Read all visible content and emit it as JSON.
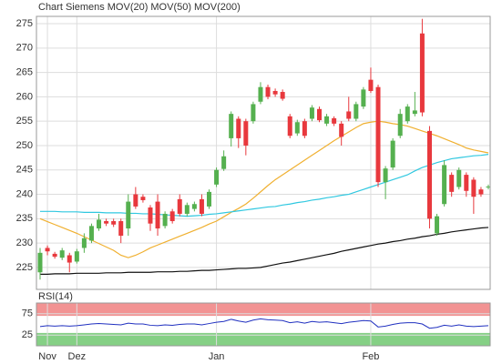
{
  "chart_data": [
    {
      "type": "candlestick",
      "title": "Chart Siemens",
      "title_color": "#e8503a",
      "categories": [
        null,
        "Nov",
        null,
        null,
        null,
        "Dez",
        null,
        null,
        null,
        null,
        null,
        null,
        null,
        null,
        null,
        null,
        null,
        null,
        null,
        null,
        null,
        null,
        null,
        null,
        "Jan",
        null,
        null,
        null,
        null,
        null,
        null,
        null,
        null,
        null,
        null,
        null,
        null,
        null,
        null,
        null,
        null,
        null,
        null,
        null,
        null,
        "Feb",
        null,
        null,
        null,
        null,
        null,
        null,
        null,
        null,
        null,
        null,
        null,
        null,
        null,
        null,
        null,
        null
      ],
      "open": [
        224,
        229,
        227.8,
        227,
        227.5,
        226.2,
        229,
        230.5,
        233,
        234.5,
        234.5,
        234.5,
        233,
        240,
        239.5,
        237.3,
        238.5,
        233.5,
        236.5,
        239,
        236,
        237,
        239,
        237.5,
        242,
        245.2,
        251.5,
        255.5,
        255,
        255,
        259,
        262,
        261.2,
        261,
        256,
        252.5,
        255,
        255.5,
        257.5,
        254.5,
        255.6,
        254.5,
        257,
        255.5,
        258,
        263.5,
        262,
        242.5,
        245.5,
        252,
        255,
        256.5,
        273,
        253,
        232,
        238,
        244,
        241.5,
        244,
        243,
        241,
        241.4
      ],
      "close": [
        228,
        228.3,
        227.2,
        228.5,
        226,
        228.3,
        231,
        233.5,
        234.8,
        234,
        233.8,
        231.5,
        238.5,
        237.5,
        238.8,
        234,
        233,
        236,
        234.5,
        236,
        237.8,
        238,
        236,
        240.5,
        245,
        247.8,
        256.5,
        251.5,
        250,
        258.5,
        262,
        260,
        260.5,
        259.6,
        252,
        254.8,
        252,
        257.8,
        255.2,
        256,
        254.5,
        251.8,
        255.5,
        258.5,
        261.5,
        261.2,
        242.5,
        245.3,
        251,
        256.5,
        258,
        257.2,
        256.8,
        235,
        235.5,
        246,
        240.5,
        245,
        240.7,
        239.5,
        240,
        241.6
      ],
      "high": [
        229,
        229.5,
        228.2,
        229,
        228,
        228.8,
        232,
        234,
        236,
        235,
        235,
        235,
        240,
        241.5,
        240,
        237.8,
        240,
        236.5,
        237,
        240,
        238.3,
        238.5,
        240,
        241,
        245.5,
        249,
        257,
        256,
        255.5,
        259,
        263,
        262.5,
        261.7,
        261.5,
        256.5,
        255.3,
        255.5,
        258.3,
        258,
        256.5,
        256,
        255,
        260,
        259,
        262,
        266,
        262.5,
        245.8,
        251.5,
        257.5,
        258.5,
        261,
        276,
        254,
        236,
        247,
        244.5,
        245.5,
        244.5,
        243.5,
        241.5,
        242
      ],
      "low": [
        222.5,
        227.5,
        226.8,
        226.5,
        224,
        225.8,
        228,
        230,
        232.5,
        233.5,
        233.3,
        230,
        231.5,
        237,
        238.3,
        232.5,
        231.5,
        233,
        234,
        235.5,
        235.5,
        236.5,
        235.5,
        237,
        241.5,
        244.8,
        249.8,
        249.5,
        248,
        254.5,
        258.5,
        259.5,
        260,
        259.2,
        251.5,
        252,
        251.5,
        255,
        254.8,
        254,
        254,
        250,
        255,
        255,
        257.5,
        260.8,
        241.5,
        239,
        245,
        251.5,
        254.5,
        256,
        256,
        233,
        231.5,
        237.5,
        239.5,
        241,
        239.5,
        236,
        239.5,
        241
      ],
      "up_color": "#55b04f",
      "down_color": "#e8383d",
      "series": [
        {
          "name": "MOV(20)",
          "color": "#f0b030",
          "values": [
            235,
            234.4,
            233.8,
            233.2,
            232.6,
            232,
            231.3,
            230.6,
            229.9,
            229.2,
            228.5,
            227.5,
            227,
            227.5,
            228.2,
            229,
            229.6,
            230.2,
            230.8,
            231.4,
            232,
            232.6,
            233.2,
            233.9,
            234.5,
            235.4,
            236.3,
            237.1,
            238,
            239.2,
            240.5,
            241.8,
            243,
            244,
            245,
            246,
            247,
            248,
            249,
            250,
            251,
            251.9,
            252.8,
            253.7,
            254.5,
            254.8,
            255,
            254.8,
            254.5,
            254.3,
            254,
            253.5,
            253,
            252.5,
            252,
            251.4,
            250.8,
            250.2,
            249.5,
            249.1,
            248.8,
            248.5
          ]
        },
        {
          "name": "MOV(50)",
          "color": "#30c8e0",
          "values": [
            236.5,
            236.5,
            236.5,
            236.4,
            236.4,
            236.4,
            236.3,
            236.3,
            236.3,
            236.2,
            236.2,
            236.2,
            236.1,
            236.1,
            236,
            236,
            235.9,
            235.8,
            235.7,
            235.6,
            235.5,
            235.6,
            235.7,
            235.9,
            236,
            236.2,
            236.4,
            236.6,
            236.8,
            237,
            237.2,
            237.4,
            237.5,
            237.8,
            238,
            238.3,
            238.5,
            238.8,
            239,
            239.3,
            239.5,
            239.8,
            240,
            240.5,
            241,
            241.5,
            242,
            242.5,
            243,
            243.5,
            244,
            244.8,
            245.5,
            246,
            246.5,
            246.9,
            247.3,
            247.5,
            247.7,
            247.9,
            248,
            248.2
          ]
        },
        {
          "name": "MOV(200)",
          "color": "#111111",
          "values": [
            223.6,
            223.6,
            223.7,
            223.7,
            223.7,
            223.8,
            223.8,
            223.8,
            223.8,
            223.9,
            223.9,
            223.9,
            224,
            224,
            224,
            224,
            224.1,
            224.1,
            224.1,
            224.2,
            224.2,
            224.3,
            224.4,
            224.4,
            224.5,
            224.6,
            224.7,
            224.8,
            224.8,
            224.9,
            225,
            225.3,
            225.6,
            225.9,
            226.1,
            226.4,
            226.7,
            227,
            227.3,
            227.6,
            227.9,
            228.3,
            228.6,
            228.9,
            229.2,
            229.5,
            229.8,
            230,
            230.3,
            230.5,
            230.8,
            231,
            231.3,
            231.5,
            231.8,
            232,
            232.3,
            232.5,
            232.7,
            232.9,
            233.1,
            233.2
          ]
        }
      ],
      "ylim": [
        220.5,
        276.5
      ],
      "yticks": [
        225,
        230,
        235,
        240,
        245,
        250,
        255,
        260,
        265,
        270,
        275
      ],
      "grid": true
    },
    {
      "type": "line",
      "title": "RSI(14)",
      "series": [
        {
          "name": "RSI(14)",
          "color": "#2030c0",
          "values": [
            45,
            47,
            46,
            47,
            46,
            47,
            49,
            51,
            52,
            51,
            50,
            49,
            53,
            51,
            51,
            48,
            47,
            49,
            48,
            50,
            51,
            51,
            49,
            52,
            55,
            57,
            62,
            58,
            55,
            60,
            63,
            61,
            60,
            59,
            54,
            56,
            53,
            57,
            55,
            56,
            54,
            52,
            55,
            57,
            59,
            58,
            44,
            46,
            50,
            53,
            54,
            54,
            51,
            41,
            43,
            48,
            46,
            49,
            46,
            45,
            46,
            47
          ]
        }
      ],
      "bands": [
        {
          "from": 70,
          "to": 100,
          "color": "#f08080"
        },
        {
          "from": 0,
          "to": 30,
          "color": "#70c870"
        }
      ],
      "ylim": [
        0,
        100
      ],
      "yticks": [
        25,
        75
      ],
      "grid": true
    }
  ]
}
